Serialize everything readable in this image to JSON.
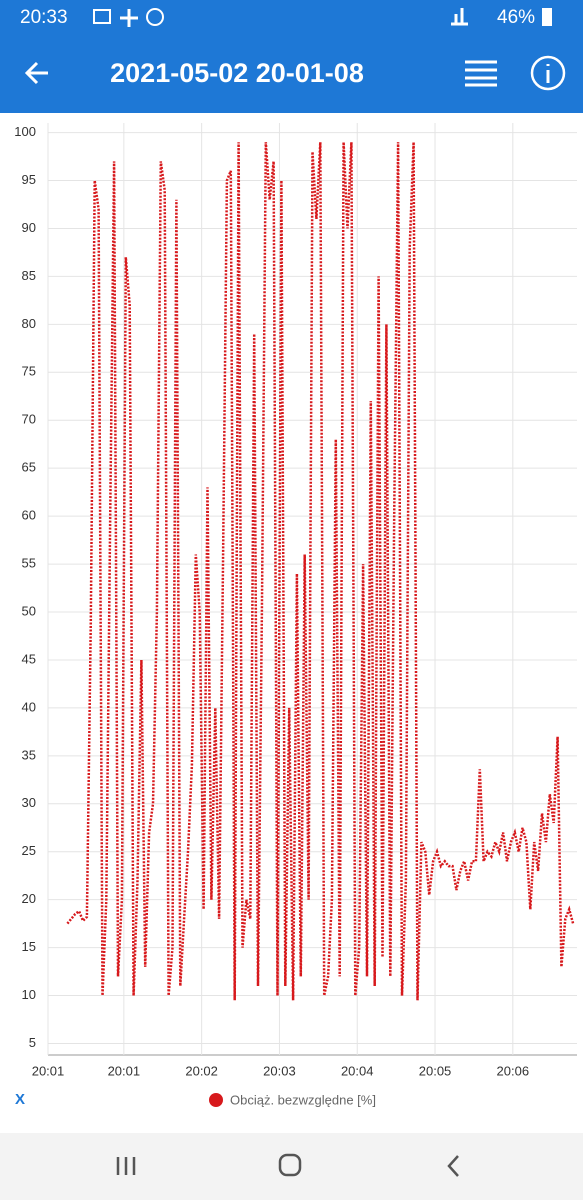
{
  "status_bar": {
    "time": "20:33",
    "battery": "46%"
  },
  "app_bar": {
    "title": "2021-05-02 20-01-08"
  },
  "toggle_label": "X",
  "chart_data": {
    "type": "line",
    "grid": true,
    "series": [
      {
        "name": "Obciąż. bezwzględne [%]",
        "color": "#d7191c",
        "values": [
          null,
          null,
          null,
          null,
          null,
          17.5,
          18,
          18.5,
          18.8,
          17.8,
          18.2,
          49,
          95,
          92,
          10,
          20,
          60,
          97,
          12,
          20,
          87,
          82,
          10,
          22,
          45,
          13,
          27,
          30,
          50,
          97,
          94,
          10,
          15,
          93,
          11,
          18,
          25,
          34,
          56,
          50,
          19,
          63,
          20,
          40,
          18,
          55,
          95,
          96,
          9.5,
          99,
          15,
          20,
          18,
          79,
          11,
          50,
          99,
          93,
          97,
          10,
          95,
          11,
          40,
          9.5,
          54,
          12,
          56,
          20,
          98,
          91,
          99,
          10,
          12,
          20,
          68,
          12,
          99,
          90,
          99,
          10,
          15,
          55,
          12,
          72,
          11,
          85,
          14,
          80,
          12,
          60,
          99,
          10,
          22,
          88,
          99,
          9.5,
          26,
          25,
          20.5,
          24,
          25,
          23.5,
          24,
          23.5,
          23.5,
          21,
          23,
          24,
          22,
          24,
          24,
          33.6,
          24,
          25,
          24.5,
          26,
          25,
          27,
          24,
          26,
          27,
          25,
          27.5,
          26,
          19,
          26,
          23,
          29,
          26,
          31,
          28,
          37,
          13,
          18,
          19,
          17.5
        ]
      }
    ],
    "xlim": [
      0,
      136
    ],
    "xticks": [
      {
        "value": 0,
        "label": "20:01"
      },
      {
        "value": 19.5,
        "label": "20:01"
      },
      {
        "value": 39.5,
        "label": "20:02"
      },
      {
        "value": 59.5,
        "label": "20:03"
      },
      {
        "value": 79.5,
        "label": "20:04"
      },
      {
        "value": 99.5,
        "label": "20:05"
      },
      {
        "value": 119.5,
        "label": "20:06"
      }
    ],
    "ylim": [
      3.8,
      101
    ],
    "yticks": [
      5,
      10,
      15,
      20,
      25,
      30,
      35,
      40,
      45,
      50,
      55,
      60,
      65,
      70,
      75,
      80,
      85,
      90,
      95,
      100
    ]
  }
}
